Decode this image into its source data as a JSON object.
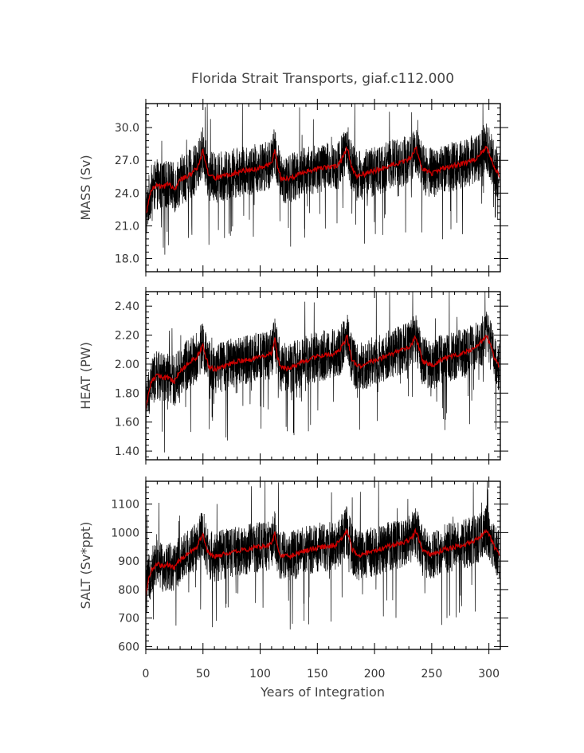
{
  "chart_data": {
    "type": "line",
    "title": "Florida Strait Transports, giaf.c112.000",
    "xlabel": "Years of Integration",
    "xlim": [
      0,
      310
    ],
    "xticks": [
      0,
      50,
      100,
      150,
      200,
      250,
      300
    ],
    "xtick_labels": [
      "0",
      "50",
      "100",
      "150",
      "200",
      "250",
      "300"
    ],
    "colors": {
      "raw": "#000000",
      "smoothed": "#cc0000"
    },
    "panels": [
      {
        "ylabel": "MASS (Sv)",
        "ylim": [
          16.8,
          32.2
        ],
        "yticks": [
          18.0,
          21.0,
          24.0,
          27.0,
          30.0
        ],
        "ytick_labels": [
          "18.0",
          "21.0",
          "24.0",
          "27.0",
          "30.0"
        ],
        "series": [
          {
            "x": [
              0,
              1,
              3,
              5,
              10,
              15,
              20,
              25,
              30,
              35,
              40,
              45,
              49,
              50,
              52,
              55,
              60,
              70,
              80,
              90,
              100,
              110,
              113,
              115,
              118,
              125,
              135,
              145,
              155,
              165,
              170,
              175,
              176,
              180,
              185,
              195,
              205,
              215,
              225,
              232,
              236,
              238,
              242,
              250,
              260,
              270,
              280,
              290,
              298,
              301,
              305,
              309
            ],
            "values": [
              22.0,
              22.5,
              23.6,
              24.3,
              24.8,
              24.5,
              24.9,
              24.4,
              25.2,
              25.5,
              25.8,
              26.3,
              27.6,
              27.9,
              26.8,
              25.6,
              25.4,
              25.6,
              25.9,
              26.1,
              26.3,
              26.7,
              28.0,
              26.5,
              25.4,
              25.3,
              25.8,
              26.1,
              26.3,
              26.4,
              26.8,
              27.9,
              28.2,
              26.4,
              25.5,
              25.9,
              26.2,
              26.6,
              26.9,
              27.3,
              28.2,
              27.6,
              26.2,
              25.8,
              26.3,
              26.5,
              26.8,
              27.2,
              28.3,
              27.5,
              26.3,
              25.6
            ]
          }
        ]
      },
      {
        "ylabel": "HEAT (PW)",
        "ylim": [
          1.34,
          2.5
        ],
        "yticks": [
          1.4,
          1.6,
          1.8,
          2.0,
          2.2,
          2.4
        ],
        "ytick_labels": [
          "1.40",
          "1.60",
          "1.80",
          "2.00",
          "2.20",
          "2.40"
        ],
        "series": [
          {
            "x": [
              0,
              1,
              3,
              5,
              10,
              15,
              20,
              25,
              30,
              35,
              40,
              45,
              49,
              50,
              52,
              55,
              60,
              70,
              80,
              90,
              100,
              110,
              113,
              115,
              118,
              125,
              135,
              145,
              155,
              165,
              170,
              175,
              176,
              180,
              185,
              195,
              205,
              215,
              225,
              232,
              236,
              238,
              242,
              250,
              260,
              270,
              280,
              290,
              298,
              301,
              305,
              309
            ],
            "values": [
              1.7,
              1.74,
              1.82,
              1.88,
              1.92,
              1.9,
              1.91,
              1.88,
              1.95,
              1.99,
              2.02,
              2.05,
              2.12,
              2.14,
              2.06,
              1.99,
              1.96,
              1.99,
              2.02,
              2.03,
              2.05,
              2.07,
              2.18,
              2.05,
              1.98,
              1.97,
              2.01,
              2.04,
              2.06,
              2.07,
              2.1,
              2.17,
              2.19,
              2.04,
              1.98,
              2.01,
              2.04,
              2.07,
              2.1,
              2.13,
              2.19,
              2.14,
              2.02,
              1.99,
              2.04,
              2.06,
              2.08,
              2.12,
              2.2,
              2.14,
              2.04,
              1.98
            ]
          }
        ]
      },
      {
        "ylabel": "SALT (Sv*ppt)",
        "ylim": [
          590,
          1180
        ],
        "yticks": [
          600,
          700,
          800,
          900,
          1000,
          1100
        ],
        "ytick_labels": [
          "600",
          "700",
          "800",
          "900",
          "1000",
          "1100"
        ],
        "series": [
          {
            "x": [
              0,
              1,
              3,
              5,
              10,
              15,
              20,
              25,
              30,
              35,
              40,
              45,
              49,
              50,
              52,
              55,
              60,
              70,
              80,
              90,
              100,
              110,
              113,
              115,
              118,
              125,
              135,
              145,
              155,
              165,
              170,
              175,
              176,
              180,
              185,
              195,
              205,
              215,
              225,
              232,
              236,
              238,
              242,
              250,
              260,
              270,
              280,
              290,
              298,
              301,
              305,
              309
            ],
            "values": [
              780,
              800,
              845,
              870,
              890,
              880,
              888,
              875,
              905,
              920,
              935,
              950,
              990,
              1000,
              960,
              925,
              915,
              925,
              935,
              942,
              950,
              958,
              1000,
              948,
              918,
              915,
              930,
              942,
              950,
              955,
              968,
              1000,
              1010,
              945,
              918,
              930,
              942,
              955,
              965,
              978,
              1005,
              985,
              935,
              920,
              940,
              950,
              960,
              975,
              1010,
              985,
              945,
              920
            ]
          }
        ]
      }
    ]
  }
}
